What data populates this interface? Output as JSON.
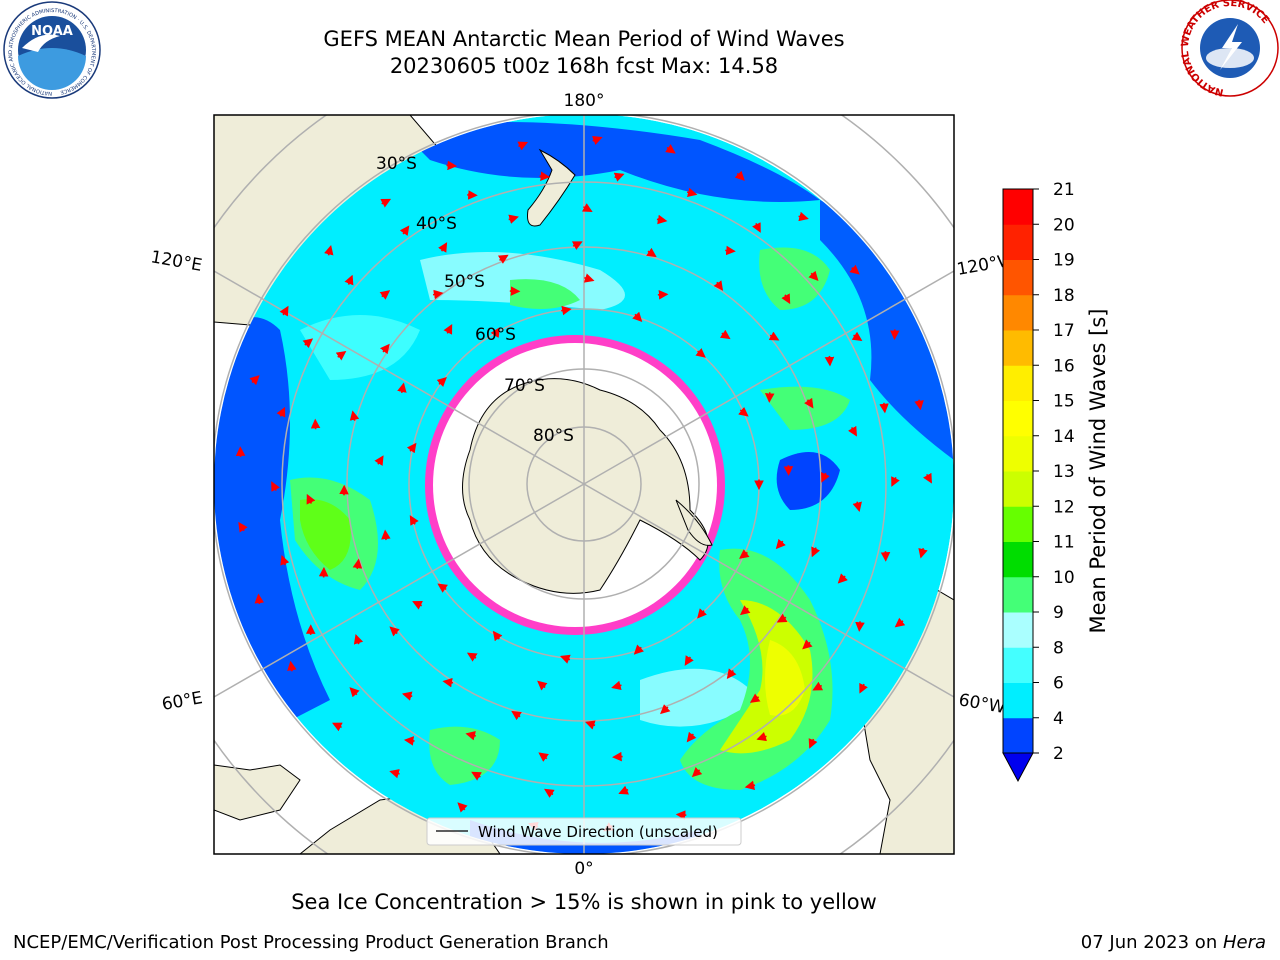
{
  "title": {
    "line1": "GEFS MEAN Antarctic Mean Period of Wind Waves",
    "line2": "20230605 t00z 168h fcst   Max: 14.58"
  },
  "logos": {
    "noaa_text": "NOAA",
    "noaa_ring": "NATIONAL OCEANIC AND ATMOSPHERIC ADMINISTRATION · U.S. DEPARTMENT OF COMMERCE",
    "nws_ring": "NATIONAL WEATHER SERVICE"
  },
  "map": {
    "projection": "south-polar-stereographic",
    "lon_labels": {
      "top": "180°",
      "bottom": "0°",
      "left_upper": "120°E",
      "left_lower": "60°E",
      "right_upper": "120°W",
      "right_lower": "60°W"
    },
    "lat_labels": [
      "30°S",
      "40°S",
      "50°S",
      "60°S",
      "70°S",
      "80°S"
    ],
    "legend_label": "Wind Wave Direction (unscaled)",
    "colors": {
      "land": "#efedd9",
      "ice_edge": "#ff3ec8",
      "arrows": "#ff0000",
      "grid": "#b0b0b0"
    }
  },
  "colorbar": {
    "label": "Mean Period of Wind Waves [s]",
    "ticks": [
      "2",
      "4",
      "6",
      "8",
      "9",
      "10",
      "11",
      "12",
      "13",
      "14",
      "15",
      "16",
      "17",
      "18",
      "19",
      "20",
      "21"
    ],
    "colors": [
      "#0044ff",
      "#00eeff",
      "#44ffff",
      "#aaffff",
      "#44ff77",
      "#00dd00",
      "#66ff00",
      "#ccff00",
      "#eeff00",
      "#ffff00",
      "#ffee00",
      "#ffbb00",
      "#ff8800",
      "#ff5500",
      "#ff2200",
      "#ff0000"
    ],
    "under_color": "#0000ee"
  },
  "sea_ice_note": "Sea Ice Concentration > 15% is shown in pink to yellow",
  "footer": {
    "left": "NCEP/EMC/Verification Post Processing Product Generation Branch",
    "right_date": "07 Jun 2023 on ",
    "right_machine": "Hera"
  }
}
